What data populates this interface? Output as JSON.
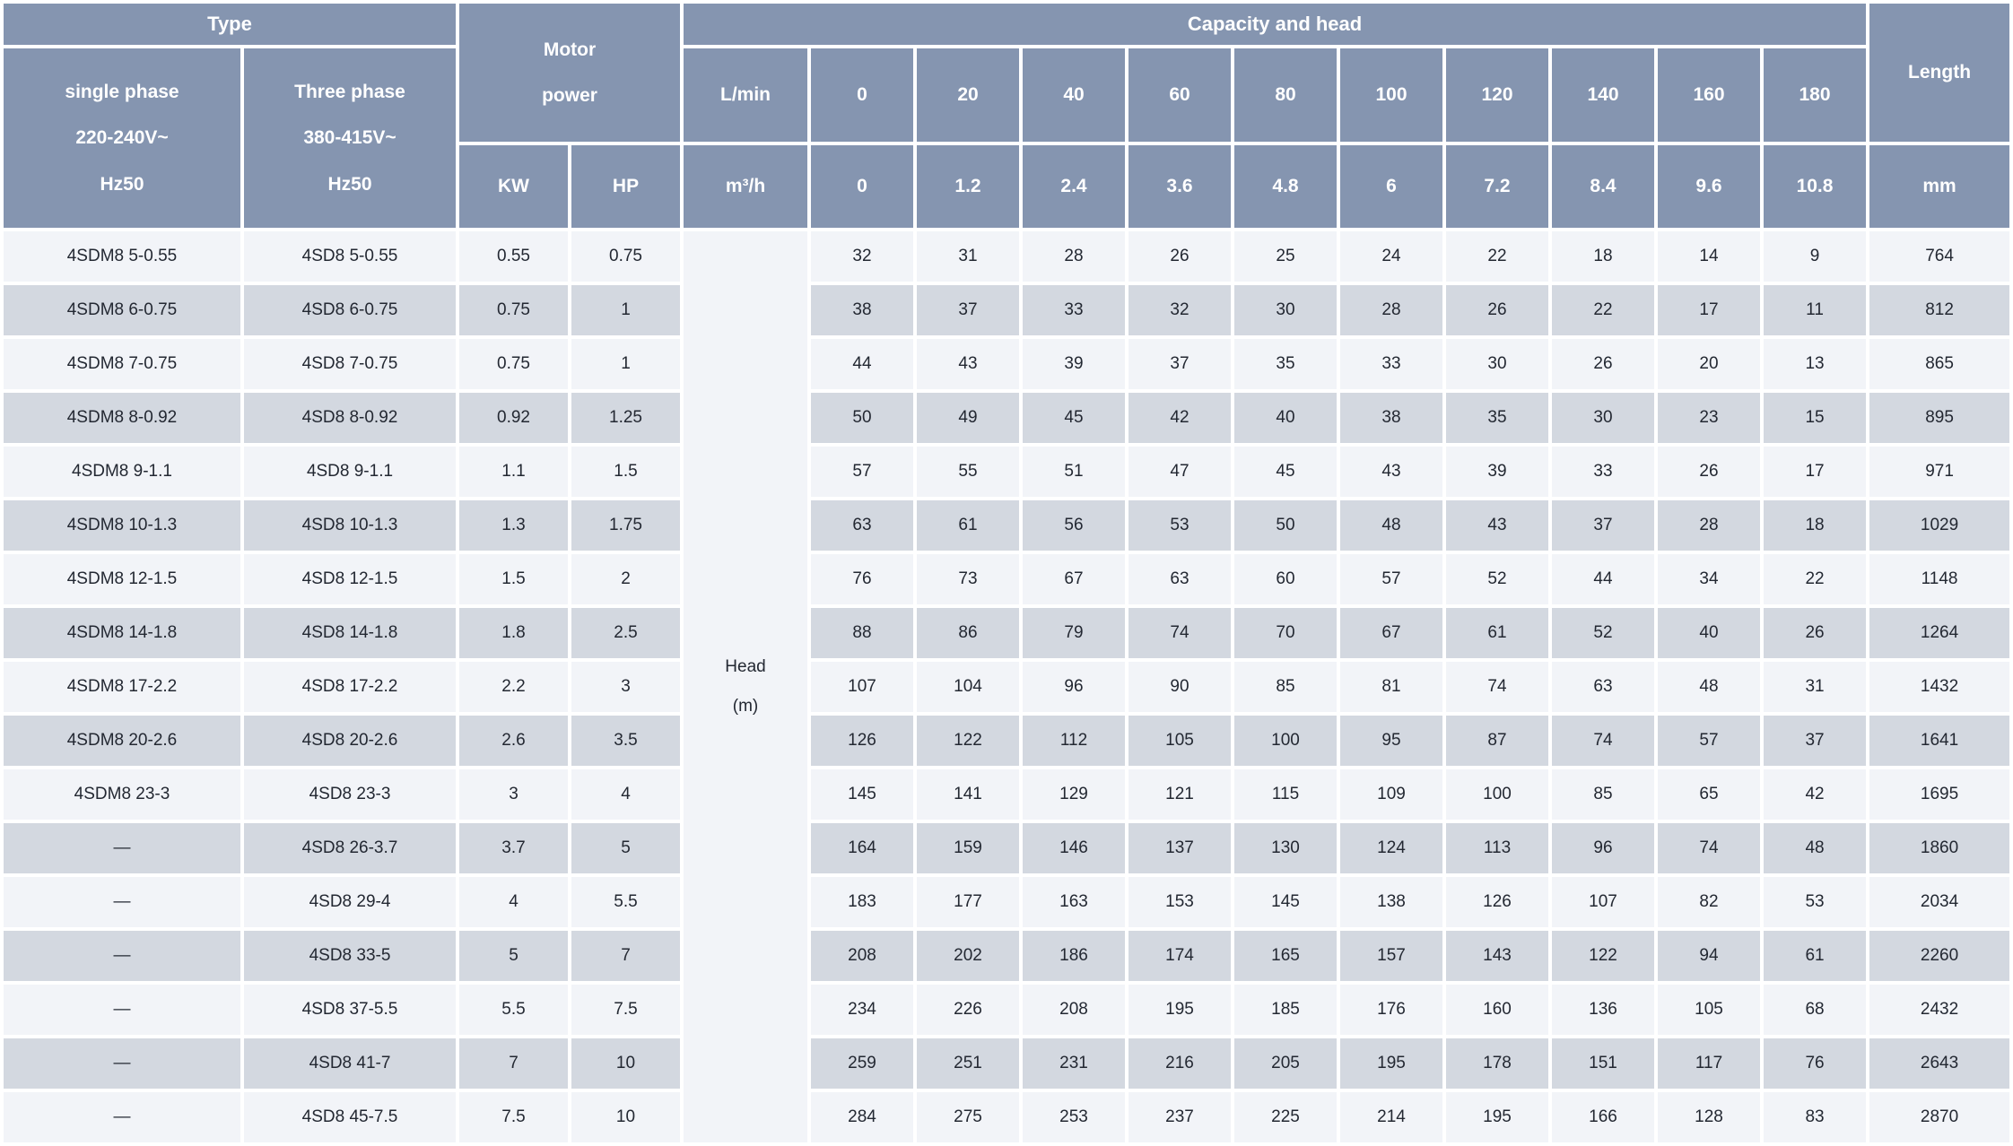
{
  "table": {
    "header": {
      "type_label": "Type",
      "single_phase": "single phase\n220-240V~\nHz50",
      "three_phase": "Three phase\n380-415V~\nHz50",
      "motor_power": "Motor\npower",
      "kw_label": "KW",
      "hp_label": "HP",
      "capacity_head_label": "Capacity and head",
      "lmin_label": "L/min",
      "m3h_label": "m³/h",
      "lmin_values": [
        "0",
        "20",
        "40",
        "60",
        "80",
        "100",
        "120",
        "140",
        "160",
        "180"
      ],
      "m3h_values": [
        "0",
        "1.2",
        "2.4",
        "3.6",
        "4.8",
        "6",
        "7.2",
        "8.4",
        "9.6",
        "10.8"
      ],
      "length_label": "Length",
      "mm_label": "mm"
    },
    "head_unit_label": "Head\n(m)",
    "rows": [
      {
        "single": "4SDM8 5-0.55",
        "three": "4SD8 5-0.55",
        "kw": "0.55",
        "hp": "0.75",
        "heads": [
          32,
          31,
          28,
          26,
          25,
          24,
          22,
          18,
          14,
          9
        ],
        "length": "764"
      },
      {
        "single": "4SDM8 6-0.75",
        "three": "4SD8 6-0.75",
        "kw": "0.75",
        "hp": "1",
        "heads": [
          38,
          37,
          33,
          32,
          30,
          28,
          26,
          22,
          17,
          11
        ],
        "length": "812"
      },
      {
        "single": "4SDM8 7-0.75",
        "three": "4SD8 7-0.75",
        "kw": "0.75",
        "hp": "1",
        "heads": [
          44,
          43,
          39,
          37,
          35,
          33,
          30,
          26,
          20,
          13
        ],
        "length": "865"
      },
      {
        "single": "4SDM8 8-0.92",
        "three": "4SD8 8-0.92",
        "kw": "0.92",
        "hp": "1.25",
        "heads": [
          50,
          49,
          45,
          42,
          40,
          38,
          35,
          30,
          23,
          15
        ],
        "length": "895"
      },
      {
        "single": "4SDM8 9-1.1",
        "three": "4SD8 9-1.1",
        "kw": "1.1",
        "hp": "1.5",
        "heads": [
          57,
          55,
          51,
          47,
          45,
          43,
          39,
          33,
          26,
          17
        ],
        "length": "971"
      },
      {
        "single": "4SDM8 10-1.3",
        "three": "4SD8 10-1.3",
        "kw": "1.3",
        "hp": "1.75",
        "heads": [
          63,
          61,
          56,
          53,
          50,
          48,
          43,
          37,
          28,
          18
        ],
        "length": "1029"
      },
      {
        "single": "4SDM8 12-1.5",
        "three": "4SD8 12-1.5",
        "kw": "1.5",
        "hp": "2",
        "heads": [
          76,
          73,
          67,
          63,
          60,
          57,
          52,
          44,
          34,
          22
        ],
        "length": "1148"
      },
      {
        "single": "4SDM8 14-1.8",
        "three": "4SD8 14-1.8",
        "kw": "1.8",
        "hp": "2.5",
        "heads": [
          88,
          86,
          79,
          74,
          70,
          67,
          61,
          52,
          40,
          26
        ],
        "length": "1264"
      },
      {
        "single": "4SDM8 17-2.2",
        "three": "4SD8 17-2.2",
        "kw": "2.2",
        "hp": "3",
        "heads": [
          107,
          104,
          96,
          90,
          85,
          81,
          74,
          63,
          48,
          31
        ],
        "length": "1432"
      },
      {
        "single": "4SDM8 20-2.6",
        "three": "4SD8 20-2.6",
        "kw": "2.6",
        "hp": "3.5",
        "heads": [
          126,
          122,
          112,
          105,
          100,
          95,
          87,
          74,
          57,
          37
        ],
        "length": "1641"
      },
      {
        "single": "4SDM8 23-3",
        "three": "4SD8 23-3",
        "kw": "3",
        "hp": "4",
        "heads": [
          145,
          141,
          129,
          121,
          115,
          109,
          100,
          85,
          65,
          42
        ],
        "length": "1695"
      },
      {
        "single": "—",
        "three": "4SD8 26-3.7",
        "kw": "3.7",
        "hp": "5",
        "heads": [
          164,
          159,
          146,
          137,
          130,
          124,
          113,
          96,
          74,
          48
        ],
        "length": "1860"
      },
      {
        "single": "—",
        "three": "4SD8 29-4",
        "kw": "4",
        "hp": "5.5",
        "heads": [
          183,
          177,
          163,
          153,
          145,
          138,
          126,
          107,
          82,
          53
        ],
        "length": "2034"
      },
      {
        "single": "—",
        "three": "4SD8 33-5",
        "kw": "5",
        "hp": "7",
        "heads": [
          208,
          202,
          186,
          174,
          165,
          157,
          143,
          122,
          94,
          61
        ],
        "length": "2260"
      },
      {
        "single": "—",
        "three": "4SD8 37-5.5",
        "kw": "5.5",
        "hp": "7.5",
        "heads": [
          234,
          226,
          208,
          195,
          185,
          176,
          160,
          136,
          105,
          68
        ],
        "length": "2432"
      },
      {
        "single": "—",
        "three": "4SD8 41-7",
        "kw": "7",
        "hp": "10",
        "heads": [
          259,
          251,
          231,
          216,
          205,
          195,
          178,
          151,
          117,
          76
        ],
        "length": "2643"
      },
      {
        "single": "—",
        "three": "4SD8 45-7.5",
        "kw": "7.5",
        "hp": "10",
        "heads": [
          284,
          275,
          253,
          237,
          225,
          214,
          195,
          166,
          128,
          83
        ],
        "length": "2870"
      }
    ],
    "colors": {
      "header_bg": "#8595b0",
      "row_light": "#f2f4f8",
      "row_dark": "#d3d8e0",
      "grid": "#ffffff",
      "text": "#232832",
      "header_text": "#ffffff"
    }
  }
}
